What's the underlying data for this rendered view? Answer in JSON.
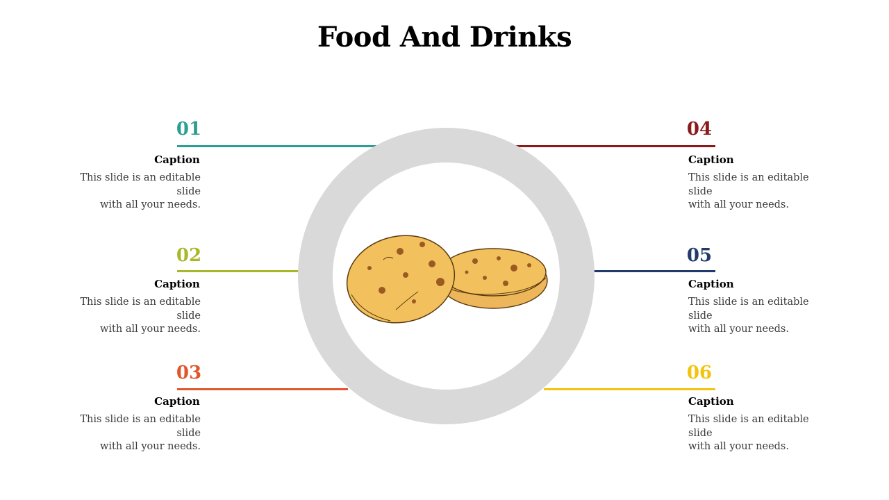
{
  "title": "Food And Drinks",
  "items": [
    {
      "number": "01",
      "caption": "Caption",
      "line1": "This slide is an editable slide",
      "line2": "with all your needs.",
      "color": "#2e9e95"
    },
    {
      "number": "02",
      "caption": "Caption",
      "line1": "This slide is an editable slide",
      "line2": "with all your needs.",
      "color": "#a8b82a"
    },
    {
      "number": "03",
      "caption": "Caption",
      "line1": "This slide is an editable slide",
      "line2": "with all your needs.",
      "color": "#e0562a"
    },
    {
      "number": "04",
      "caption": "Caption",
      "line1": "This slide is an editable slide",
      "line2": "with all your needs.",
      "color": "#8b1a1a"
    },
    {
      "number": "05",
      "caption": "Caption",
      "line1": "This slide is an editable slide",
      "line2": "with all your needs.",
      "color": "#1f3a6b"
    },
    {
      "number": "06",
      "caption": "Caption",
      "line1": "This slide is an editable slide",
      "line2": "with all your needs.",
      "color": "#f2c40c"
    }
  ],
  "ring_color": "#d9d9d9",
  "image": "cookies-illustration"
}
